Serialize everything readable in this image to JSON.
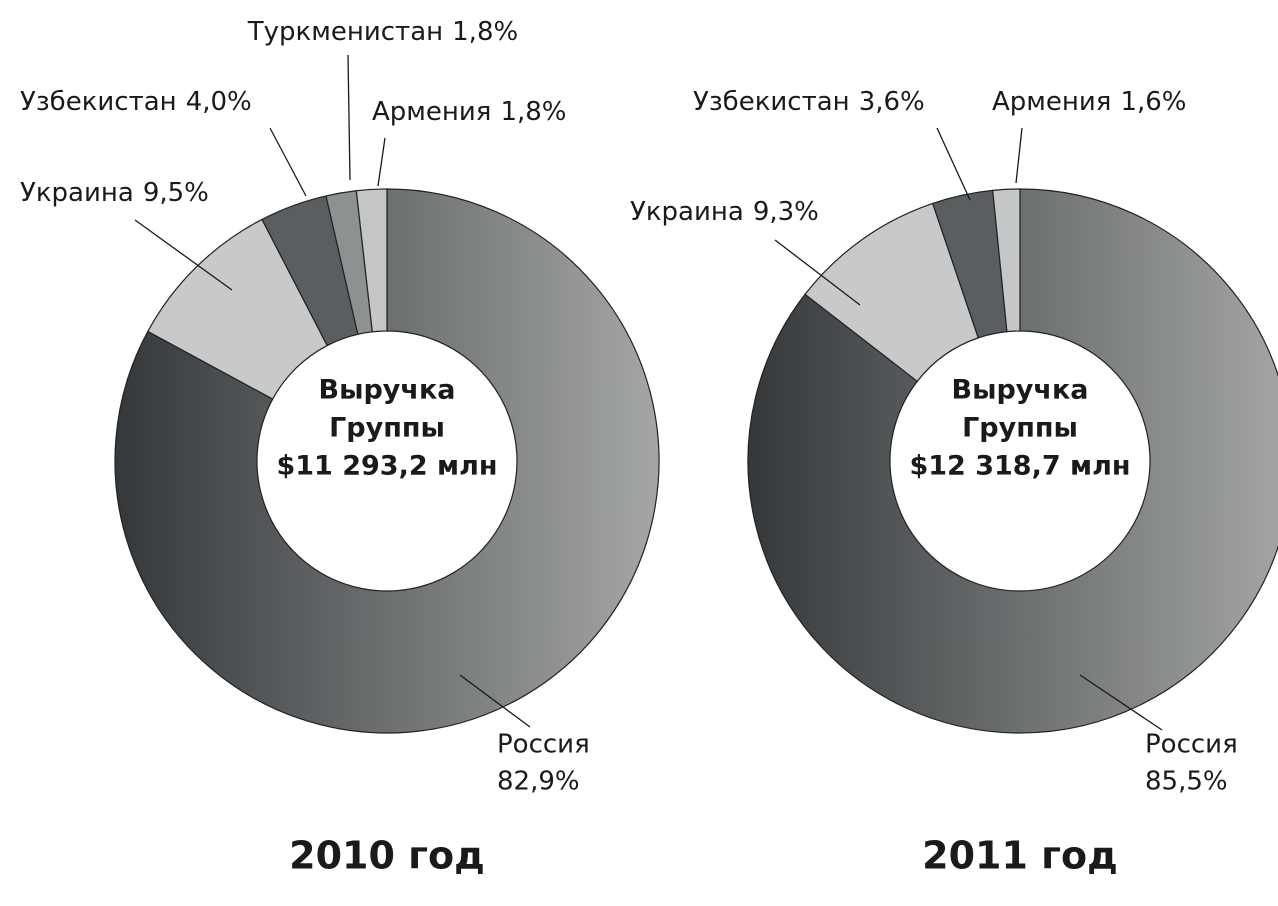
{
  "chart_data": [
    {
      "type": "donut",
      "title": "2010 год",
      "center_text": [
        "Выручка",
        "Группы",
        "$11 293,2 млн"
      ],
      "categories": [
        "Россия",
        "Украина",
        "Узбекистан",
        "Туркменистан",
        "Армения"
      ],
      "values": [
        82.9,
        9.5,
        4.0,
        1.8,
        1.8
      ],
      "value_labels": [
        "82,9%",
        "9,5%",
        "4,0%",
        "1,8%",
        "1,8%"
      ],
      "colors": [
        "#6f7374",
        "#c8c9ca",
        "#5a5e60",
        "#8e9192",
        "#c5c6c7"
      ],
      "gradient": [
        "#35383a",
        "#a4a6a7"
      ]
    },
    {
      "type": "donut",
      "title": "2011 год",
      "center_text": [
        "Выручка",
        "Группы",
        "$12 318,7 млн"
      ],
      "categories": [
        "Россия",
        "Украина",
        "Узбекистан",
        "Армения"
      ],
      "values": [
        85.5,
        9.3,
        3.6,
        1.6
      ],
      "value_labels": [
        "85,5%",
        "9,3%",
        "3,6%",
        "1,6%"
      ],
      "colors": [
        "#6f7374",
        "#c8c9ca",
        "#5a5e60",
        "#c5c6c7"
      ],
      "gradient": [
        "#35383a",
        "#a4a6a7"
      ]
    }
  ]
}
